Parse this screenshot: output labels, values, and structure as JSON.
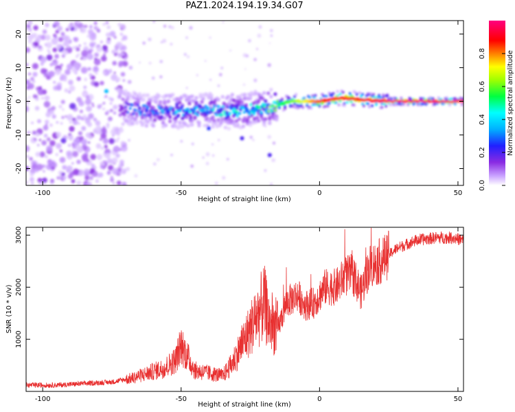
{
  "title": "PAZ1.2024.194.19.34.G07",
  "chart_data": [
    {
      "type": "heatmap",
      "xlabel": "Height of straight line (km)",
      "ylabel": "Frequency (Hz)",
      "xlim": [
        -106,
        52
      ],
      "ylim": [
        -25,
        24
      ],
      "x_ticks": [
        -100,
        -50,
        0,
        50
      ],
      "y_ticks": [
        -20,
        -10,
        0,
        10,
        20
      ],
      "colorbar": {
        "label": "Normalized spectral amplitude",
        "range": [
          0,
          1
        ],
        "ticks": [
          0.0,
          0.2,
          0.4,
          0.6,
          0.8
        ],
        "colormap": "rainbow (white-purple-blue-cyan-green-yellow-red-magenta)"
      },
      "ridge": [
        {
          "x": -70,
          "freq": -2,
          "amp": 0.2
        },
        {
          "x": -60,
          "freq": -3,
          "amp": 0.25
        },
        {
          "x": -50,
          "freq": -3,
          "amp": 0.3
        },
        {
          "x": -40,
          "freq": -2.5,
          "amp": 0.3
        },
        {
          "x": -30,
          "freq": -3,
          "amp": 0.35
        },
        {
          "x": -20,
          "freq": -2,
          "amp": 0.4
        },
        {
          "x": -10,
          "freq": 0,
          "amp": 0.6
        },
        {
          "x": 0,
          "freq": 0,
          "amp": 0.85
        },
        {
          "x": 8,
          "freq": 1,
          "amp": 0.9
        },
        {
          "x": 15,
          "freq": 0.5,
          "amp": 0.9
        },
        {
          "x": 25,
          "freq": 0,
          "amp": 0.95
        },
        {
          "x": 52,
          "freq": 0,
          "amp": 0.95
        }
      ]
    },
    {
      "type": "line",
      "xlabel": "Height of straight line (km)",
      "ylabel": "SNR (10 * v/v)",
      "xlim": [
        -106,
        52
      ],
      "ylim": [
        0,
        3150
      ],
      "x_ticks": [
        -100,
        -50,
        0,
        50
      ],
      "y_ticks": [
        1000,
        2000,
        3000
      ],
      "color": "#e83030",
      "series": [
        {
          "x": [
            -106,
            -95,
            -85,
            -75,
            -68,
            -62,
            -56,
            -52,
            -50,
            -48,
            -45,
            -40,
            -35,
            -32,
            -28,
            -24,
            -20,
            -18,
            -15,
            -12,
            -8,
            -5,
            -2,
            2,
            6,
            9,
            12,
            15,
            18,
            22,
            28,
            35,
            42,
            48,
            52
          ],
          "y": [
            120,
            120,
            150,
            180,
            250,
            350,
            450,
            600,
            900,
            700,
            400,
            350,
            300,
            500,
            900,
            1300,
            1700,
            1300,
            1200,
            1700,
            1850,
            1650,
            1700,
            2000,
            2000,
            2200,
            2250,
            1900,
            2400,
            2500,
            2750,
            2900,
            2950,
            2950,
            2900
          ]
        }
      ]
    }
  ]
}
